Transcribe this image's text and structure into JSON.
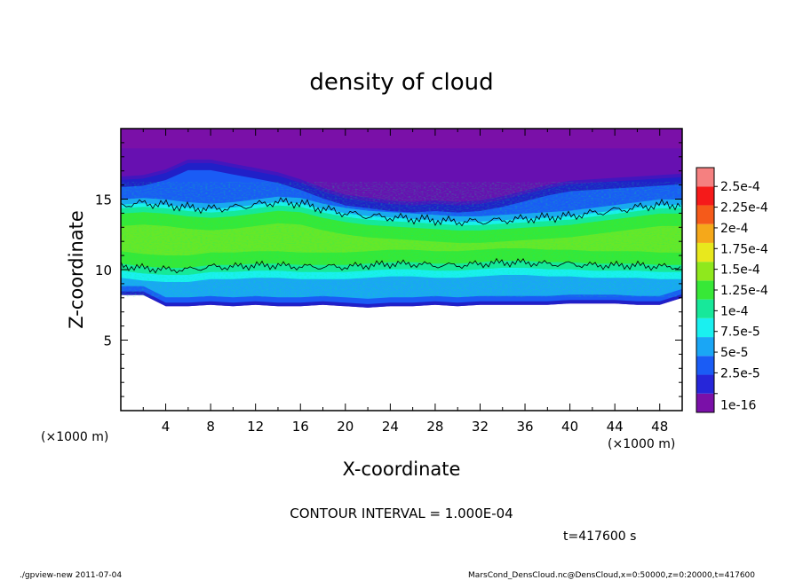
{
  "chart_data": {
    "type": "heatmap",
    "title": "density of cloud",
    "xlabel": "X-coordinate",
    "ylabel": "Z-coordinate",
    "x_unit": "(×1000 m)",
    "y_unit": "(×1000 m)",
    "xlim": [
      0,
      50
    ],
    "ylim": [
      0,
      20
    ],
    "x_ticks": [
      "4",
      "8",
      "12",
      "16",
      "20",
      "24",
      "28",
      "32",
      "36",
      "40",
      "44",
      "48"
    ],
    "y_ticks": [
      "5",
      "10",
      "15"
    ],
    "contour_interval_text": "CONTOUR INTERVAL = 1.000E-04",
    "time_text": "t=417600  s",
    "colorbar": {
      "labels": [
        "1e-16",
        "2.5e-5",
        "5e-5",
        "7.5e-5",
        "1e-4",
        "1.25e-4",
        "1.5e-4",
        "1.75e-4",
        "2e-4",
        "2.25e-4",
        "2.5e-4"
      ],
      "colors": [
        "#7a10a8",
        "#2626d9",
        "#1a5cf5",
        "#1aa6f5",
        "#1af0f0",
        "#17e89a",
        "#37e837",
        "#8fe81d",
        "#e8e81d",
        "#f5a81a",
        "#f55a1a",
        "#f51a1a",
        "#f58080"
      ]
    },
    "profile": {
      "x": [
        0,
        2,
        4,
        6,
        8,
        10,
        12,
        14,
        16,
        18,
        20,
        22,
        24,
        26,
        28,
        30,
        32,
        34,
        36,
        38,
        40,
        42,
        44,
        46,
        48,
        50
      ],
      "cloud_base_z": [
        8.2,
        8.2,
        7.4,
        7.4,
        7.5,
        7.4,
        7.5,
        7.4,
        7.4,
        7.5,
        7.4,
        7.3,
        7.4,
        7.4,
        7.5,
        7.4,
        7.5,
        7.5,
        7.5,
        7.5,
        7.6,
        7.6,
        7.6,
        7.5,
        7.5,
        8.0
      ],
      "core_bottom_z": [
        10.3,
        10.1,
        10.0,
        10.0,
        10.2,
        10.2,
        10.3,
        10.3,
        10.2,
        10.2,
        10.2,
        10.3,
        10.4,
        10.4,
        10.3,
        10.3,
        10.4,
        10.5,
        10.5,
        10.4,
        10.4,
        10.3,
        10.3,
        10.3,
        10.2,
        10.2
      ],
      "core_top_z": [
        14.6,
        14.7,
        14.6,
        14.4,
        14.3,
        14.4,
        14.6,
        14.8,
        14.7,
        14.3,
        14.0,
        13.8,
        13.7,
        13.6,
        13.5,
        13.4,
        13.4,
        13.5,
        13.6,
        13.7,
        13.8,
        14.0,
        14.2,
        14.4,
        14.6,
        14.6
      ],
      "blue_top_z": [
        15.6,
        15.7,
        16.1,
        16.8,
        16.8,
        16.5,
        16.2,
        15.9,
        15.4,
        14.8,
        14.3,
        14.1,
        13.9,
        13.8,
        13.9,
        13.8,
        13.9,
        14.2,
        14.6,
        15.0,
        15.3,
        15.4,
        15.5,
        15.6,
        15.7,
        15.8
      ]
    }
  },
  "footer": {
    "left": "./gpview-new  2011-07-04",
    "right": "MarsCond_DensCloud.nc@DensCloud,x=0:50000,z=0:20000,t=417600"
  }
}
